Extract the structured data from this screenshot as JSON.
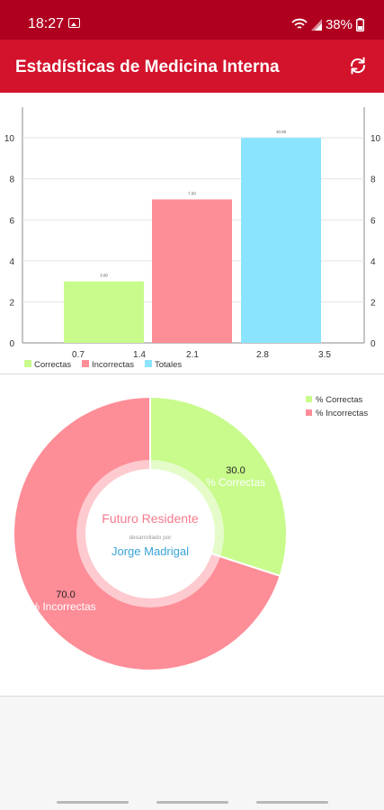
{
  "status_bar": {
    "time": "18:27",
    "battery": "38%",
    "icons": [
      "image-icon",
      "wifi-icon",
      "signal-icon",
      "battery-icon"
    ]
  },
  "app_bar": {
    "title": "Estadísticas de Medicina Interna",
    "refresh_icon": "refresh-icon",
    "background": "#d3122b"
  },
  "center": {
    "title": "Futuro Residente",
    "subtitle": "desarrollado por",
    "author": "Jorge Madrigal"
  },
  "chart_data": [
    {
      "type": "bar",
      "categories": [
        "Correctas",
        "Incorrectas",
        "Totales"
      ],
      "values": [
        3,
        7,
        10
      ],
      "value_labels": [
        "3.00",
        "7.00",
        "10.00"
      ],
      "colors": [
        "#c8fb8c",
        "#fd8d97",
        "#8be4fd"
      ],
      "x_ticks": [
        "0.7",
        "1.4",
        "2.1",
        "2.8",
        "3.5"
      ],
      "y_ticks": [
        0,
        2,
        4,
        6,
        8,
        10
      ],
      "ylim": [
        0,
        11.5
      ],
      "grid": true,
      "legend": {
        "position": "bottom-left",
        "items": [
          {
            "label": "Correctas",
            "color": "#c8fb8c"
          },
          {
            "label": "Incorrectas",
            "color": "#fd8d97"
          },
          {
            "label": "Totales",
            "color": "#8be4fd"
          }
        ]
      }
    },
    {
      "type": "pie",
      "donut": true,
      "slices": [
        {
          "value": 30.0,
          "label": "30.0",
          "sublabel": "% Correctas",
          "color": "#c8fb8c"
        },
        {
          "value": 70.0,
          "label": "70.0",
          "sublabel": "% Incorrectas",
          "color": "#fd8d97"
        }
      ],
      "legend": {
        "position": "top-right",
        "items": [
          {
            "label": "% Correctas",
            "color": "#c8fb8c"
          },
          {
            "label": "% Incorrectas",
            "color": "#fd8d97"
          }
        ]
      }
    }
  ]
}
